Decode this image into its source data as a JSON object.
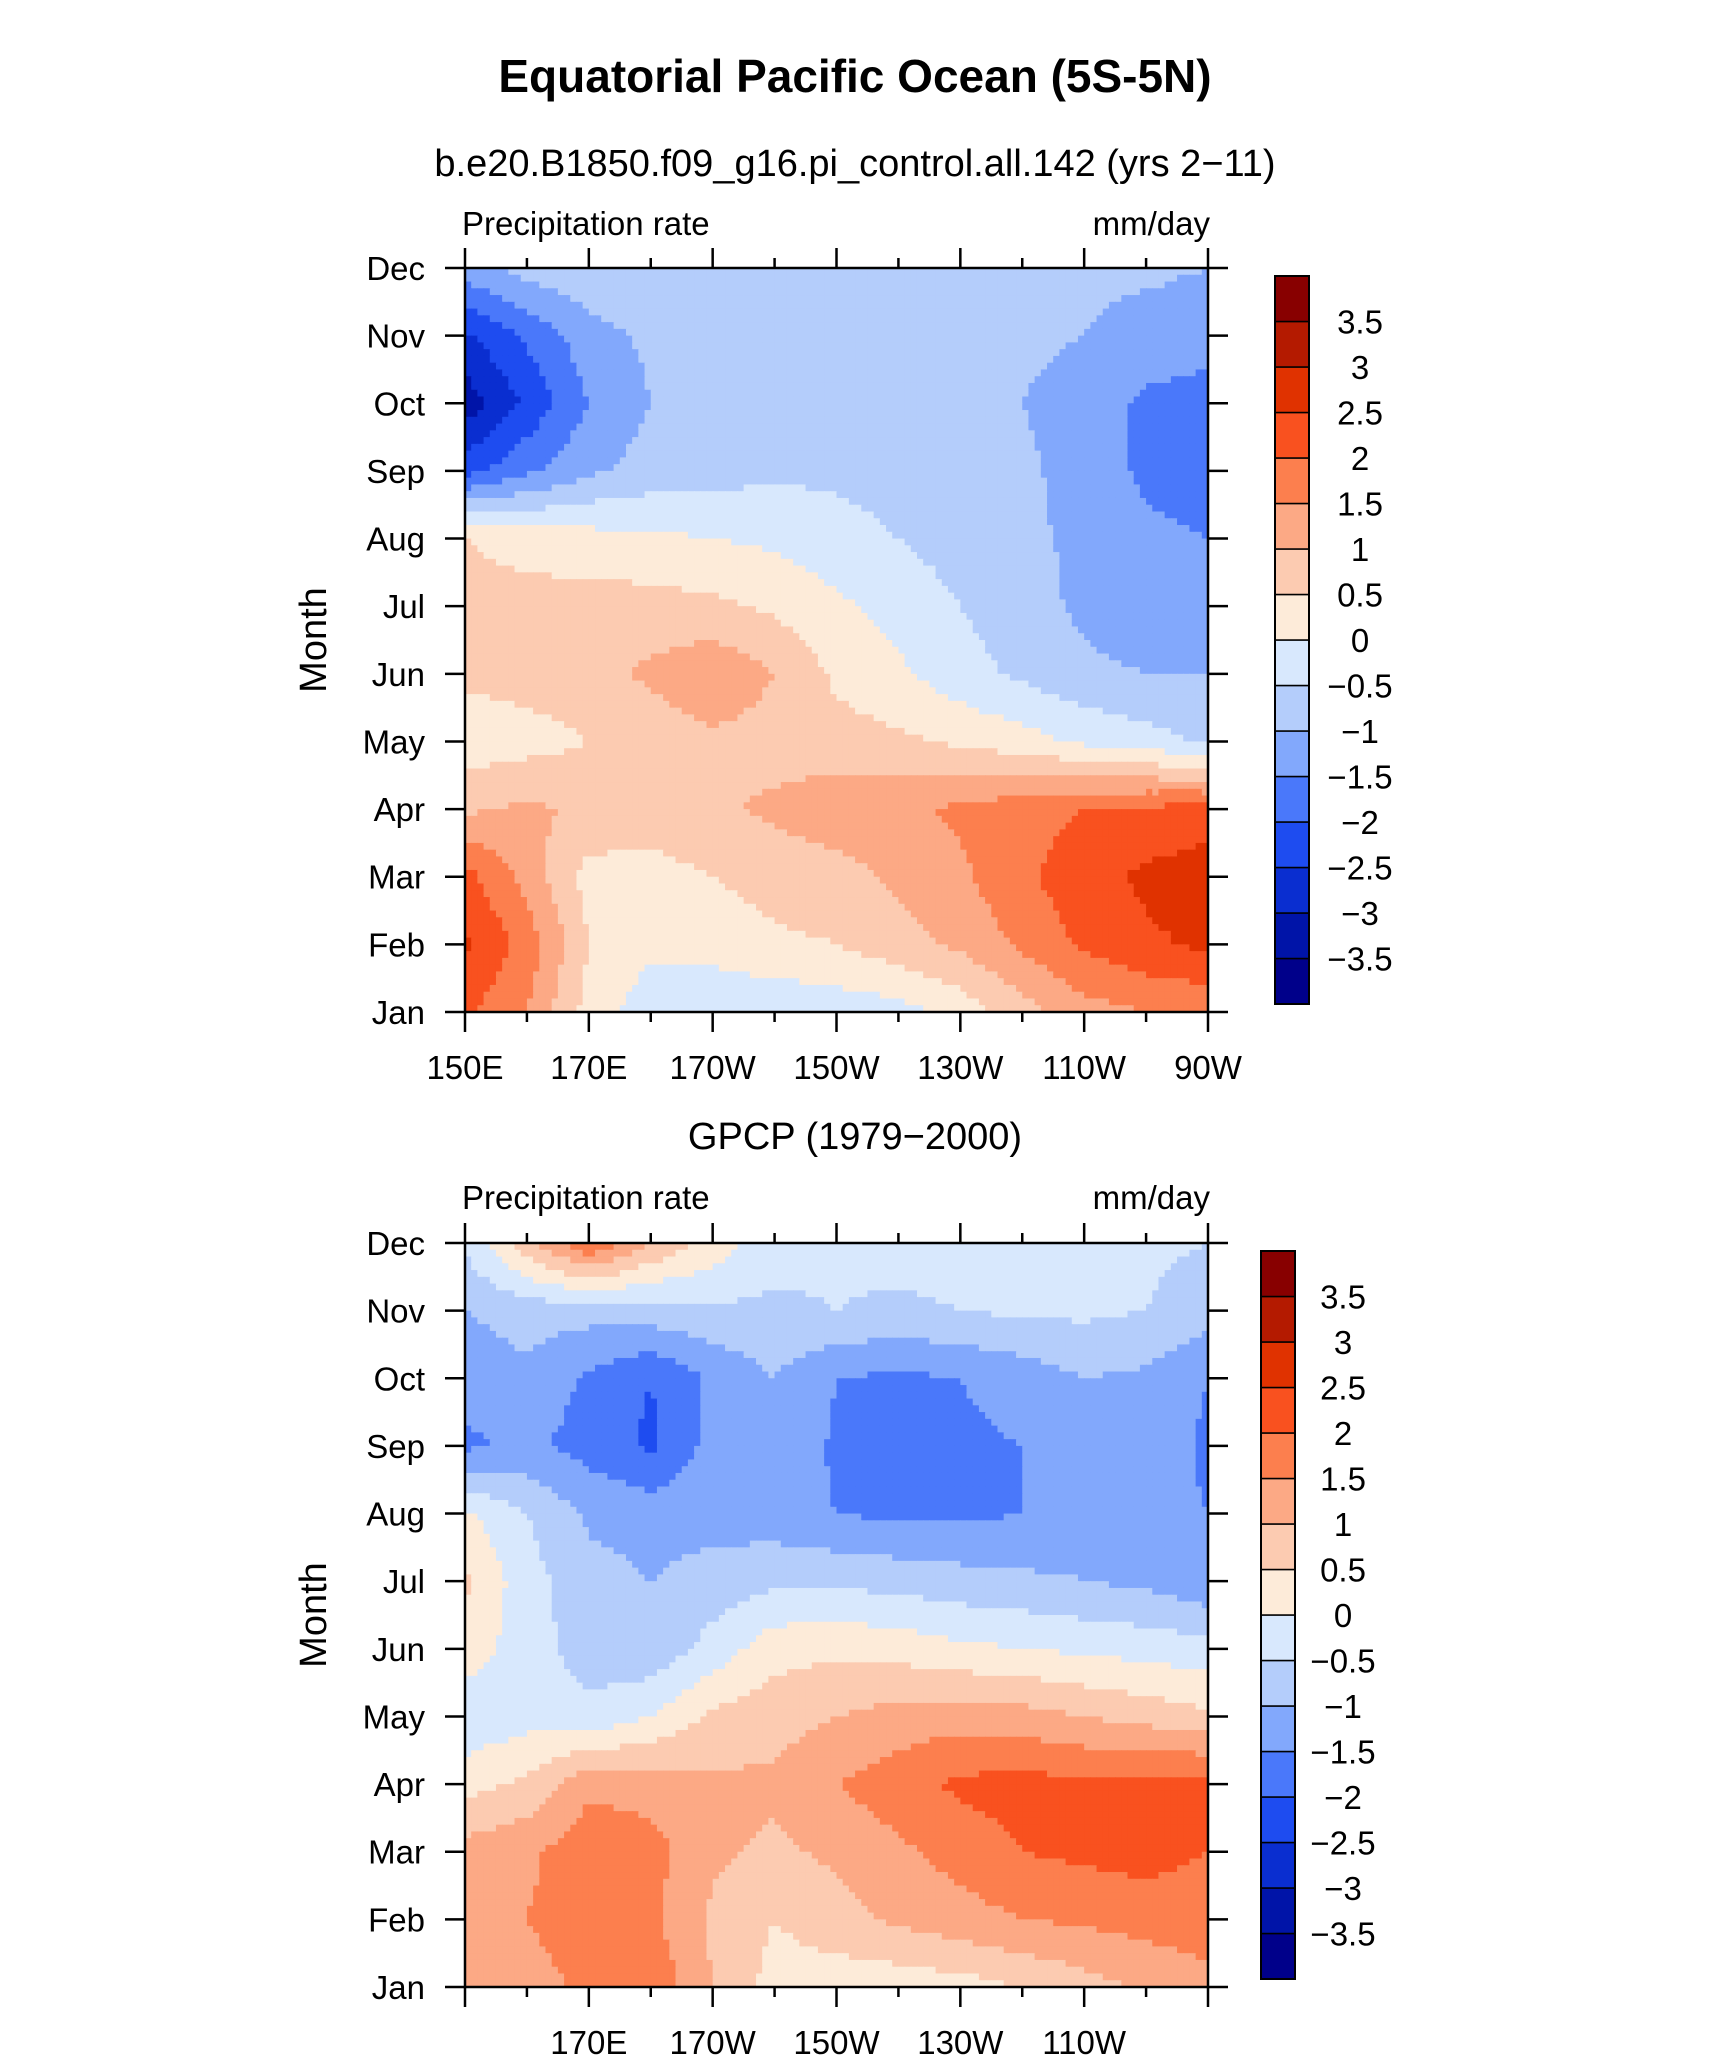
{
  "figure": {
    "title": "Equatorial Pacific Ocean (5S-5N)"
  },
  "colorbar": {
    "levels": [
      -3.5,
      -3,
      -2.5,
      -2,
      -1.5,
      -1,
      -0.5,
      0,
      0.5,
      1,
      1.5,
      2,
      2.5,
      3,
      3.5
    ],
    "level_labels": [
      "−3.5",
      "−3",
      "−2.5",
      "−2",
      "−1.5",
      "−1",
      "−0.5",
      "0",
      "0.5",
      "1",
      "1.5",
      "2",
      "2.5",
      "3",
      "3.5"
    ],
    "colors": [
      "#00008a",
      "#0014a8",
      "#0a2ed0",
      "#1e4cf0",
      "#4a78fa",
      "#82a8fc",
      "#b4cdfb",
      "#d8e8fd",
      "#fdebd9",
      "#fccbb1",
      "#fca985",
      "#fc7f4e",
      "#f9511f",
      "#e03200",
      "#b41a00",
      "#880000"
    ]
  },
  "chart_data": [
    {
      "type": "heatmap",
      "title": "b.e20.B1850.f09_g16.pi_control.all.142 (yrs 2−11)",
      "left_label": "Precipitation rate",
      "right_label": "mm/day",
      "ylabel": "Month",
      "x_tick_labels": [
        "150E",
        "170E",
        "170W",
        "150W",
        "130W",
        "110W",
        "90W"
      ],
      "x_ticks_deg": [
        150,
        170,
        190,
        210,
        230,
        250,
        270
      ],
      "xlim": [
        150,
        270
      ],
      "y_tick_labels": [
        "Jan",
        "Feb",
        "Mar",
        "Apr",
        "May",
        "Jun",
        "Jul",
        "Aug",
        "Sep",
        "Oct",
        "Nov",
        "Dec"
      ],
      "ylim": [
        1,
        12
      ],
      "x_nodes_deg": [
        150,
        160,
        170,
        180,
        190,
        200,
        210,
        220,
        230,
        240,
        250,
        260,
        270
      ],
      "values": [
        [
          2.1,
          1.5,
          0.3,
          -0.3,
          -0.4,
          -0.4,
          -0.3,
          -0.2,
          0.2,
          0.8,
          1.3,
          1.5,
          1.6
        ],
        [
          2.6,
          1.8,
          0.5,
          0.1,
          0.2,
          0.4,
          0.5,
          0.8,
          1.1,
          1.6,
          2.1,
          2.4,
          2.6
        ],
        [
          2.2,
          1.3,
          0.3,
          0.3,
          0.5,
          0.7,
          0.8,
          1.1,
          1.4,
          1.9,
          2.3,
          2.6,
          2.8
        ],
        [
          0.9,
          1.1,
          0.9,
          0.8,
          0.9,
          1.1,
          1.3,
          1.4,
          1.6,
          1.8,
          2.0,
          2.1,
          2.2
        ],
        [
          0.2,
          0.3,
          0.5,
          0.7,
          0.9,
          0.8,
          0.7,
          0.6,
          0.4,
          0.2,
          -0.1,
          -0.3,
          -0.6
        ],
        [
          0.6,
          0.7,
          0.8,
          1.1,
          1.4,
          1.0,
          0.4,
          0.1,
          -0.3,
          -0.6,
          -0.9,
          -1.0,
          -1.0
        ],
        [
          0.7,
          0.7,
          0.7,
          0.7,
          0.6,
          0.4,
          0.1,
          -0.2,
          -0.5,
          -0.8,
          -1.1,
          -1.3,
          -1.4
        ],
        [
          0.5,
          0.3,
          0.2,
          0.1,
          0.0,
          -0.1,
          -0.3,
          -0.5,
          -0.7,
          -0.9,
          -1.1,
          -1.4,
          -1.5
        ],
        [
          -2.2,
          -1.6,
          -1.1,
          -0.8,
          -0.7,
          -0.6,
          -0.6,
          -0.7,
          -0.8,
          -0.9,
          -1.2,
          -1.6,
          -1.7
        ],
        [
          -3.3,
          -2.4,
          -1.5,
          -1.0,
          -0.8,
          -0.7,
          -0.7,
          -0.8,
          -0.9,
          -1.0,
          -1.2,
          -1.6,
          -1.7
        ],
        [
          -2.6,
          -1.9,
          -1.2,
          -0.9,
          -0.8,
          -0.7,
          -0.7,
          -0.8,
          -0.8,
          -0.9,
          -1.0,
          -1.2,
          -1.3
        ],
        [
          -1.2,
          -0.8,
          -0.6,
          -0.6,
          -0.7,
          -0.7,
          -0.7,
          -0.8,
          -0.8,
          -0.8,
          -0.9,
          -0.9,
          -1.0
        ]
      ]
    },
    {
      "type": "heatmap",
      "title": "GPCP (1979−2000)",
      "left_label": "Precipitation rate",
      "right_label": "mm/day",
      "ylabel": "Month",
      "x_tick_labels": [
        "170E",
        "170W",
        "150W",
        "130W",
        "110W"
      ],
      "x_ticks_deg": [
        170,
        190,
        210,
        230,
        250
      ],
      "xlim": [
        150,
        270
      ],
      "y_tick_labels": [
        "Jan",
        "Feb",
        "Mar",
        "Apr",
        "May",
        "Jun",
        "Jul",
        "Aug",
        "Sep",
        "Oct",
        "Nov",
        "Dec"
      ],
      "ylim": [
        1,
        12
      ],
      "x_nodes_deg": [
        150,
        160,
        170,
        180,
        190,
        200,
        210,
        220,
        230,
        240,
        250,
        260,
        270
      ],
      "values": [
        [
          1.0,
          1.3,
          1.6,
          1.9,
          1.0,
          0.3,
          0.2,
          0.2,
          0.3,
          0.5,
          0.8,
          1.1,
          1.4
        ],
        [
          1.5,
          1.5,
          1.8,
          1.6,
          0.9,
          0.5,
          0.8,
          1.1,
          1.3,
          1.5,
          1.6,
          1.7,
          1.7
        ],
        [
          1.2,
          1.4,
          1.8,
          1.7,
          1.1,
          0.9,
          1.1,
          1.4,
          1.7,
          2.0,
          2.1,
          2.2,
          2.0
        ],
        [
          0.3,
          0.6,
          1.4,
          1.3,
          1.1,
          1.1,
          1.5,
          1.8,
          2.1,
          2.2,
          2.1,
          2.2,
          2.2
        ],
        [
          -0.4,
          -0.2,
          -0.4,
          0.0,
          0.6,
          0.8,
          1.0,
          1.2,
          1.3,
          1.2,
          1.0,
          0.8,
          0.6
        ],
        [
          0.3,
          -0.3,
          -0.7,
          -0.9,
          -0.3,
          0.3,
          0.4,
          0.3,
          0.1,
          0.0,
          -0.1,
          -0.2,
          -0.3
        ],
        [
          0.6,
          -0.3,
          -0.8,
          -1.0,
          -0.8,
          -0.6,
          -0.6,
          -0.7,
          -0.8,
          -0.9,
          -1.0,
          -1.1,
          -1.4
        ],
        [
          0.1,
          -0.5,
          -1.1,
          -1.2,
          -1.2,
          -1.3,
          -1.5,
          -1.6,
          -1.6,
          -1.5,
          -1.2,
          -1.3,
          -1.5
        ],
        [
          -1.6,
          -1.4,
          -1.7,
          -2.1,
          -1.3,
          -1.0,
          -1.6,
          -1.7,
          -1.6,
          -1.5,
          -1.1,
          -1.2,
          -1.6
        ],
        [
          -1.3,
          -1.1,
          -1.6,
          -2.0,
          -1.4,
          -1.0,
          -1.5,
          -1.6,
          -1.5,
          -1.3,
          -1.0,
          -1.1,
          -1.5
        ],
        [
          -1.0,
          -0.8,
          -0.8,
          -0.7,
          -0.6,
          -0.6,
          -0.5,
          -0.6,
          -0.5,
          -0.4,
          -0.4,
          -0.5,
          -0.8
        ],
        [
          -0.4,
          0.8,
          2.0,
          1.0,
          0.3,
          -0.3,
          -0.4,
          -0.3,
          -0.3,
          -0.3,
          -0.4,
          -0.4,
          -0.5
        ]
      ]
    }
  ]
}
